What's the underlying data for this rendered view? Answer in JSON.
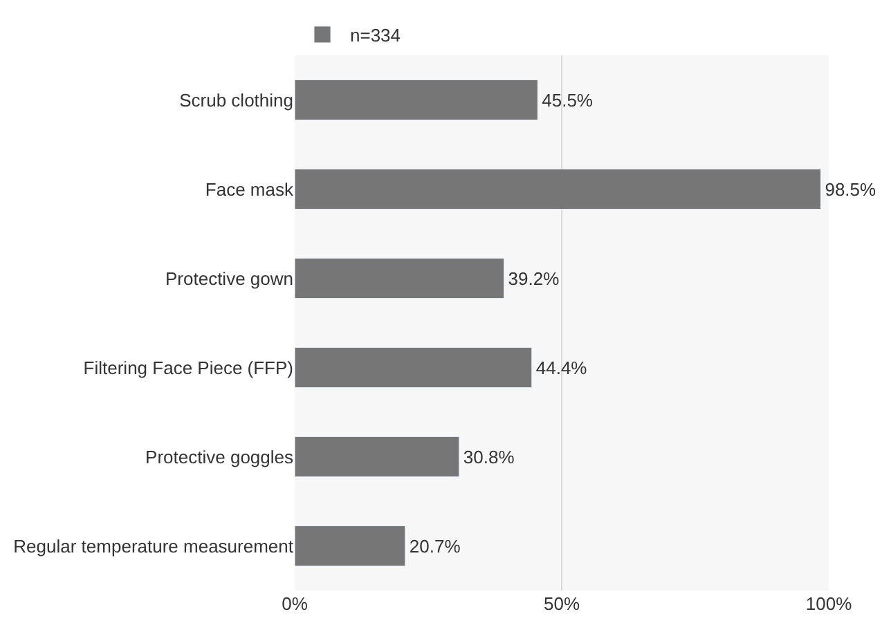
{
  "chart_data": {
    "type": "bar",
    "orientation": "horizontal",
    "categories": [
      "Scrub clothing",
      "Face mask",
      "Protective gown",
      "Filtering Face Piece (FFP)",
      "Protective goggles",
      "Regular temperature measurement"
    ],
    "series": [
      {
        "name": "n=334",
        "color": "#767676",
        "values": [
          45.5,
          98.5,
          39.2,
          44.4,
          30.8,
          20.7
        ],
        "value_labels": [
          "45.5%",
          "98.5%",
          "39.2%",
          "44.4%",
          "30.8%",
          "20.7%"
        ]
      }
    ],
    "xlim": [
      0,
      100
    ],
    "xticks": [
      {
        "value": 0,
        "label": "0%"
      },
      {
        "value": 50,
        "label": "50%"
      },
      {
        "value": 100,
        "label": "100%"
      }
    ],
    "grid": "x",
    "legend": "top"
  }
}
